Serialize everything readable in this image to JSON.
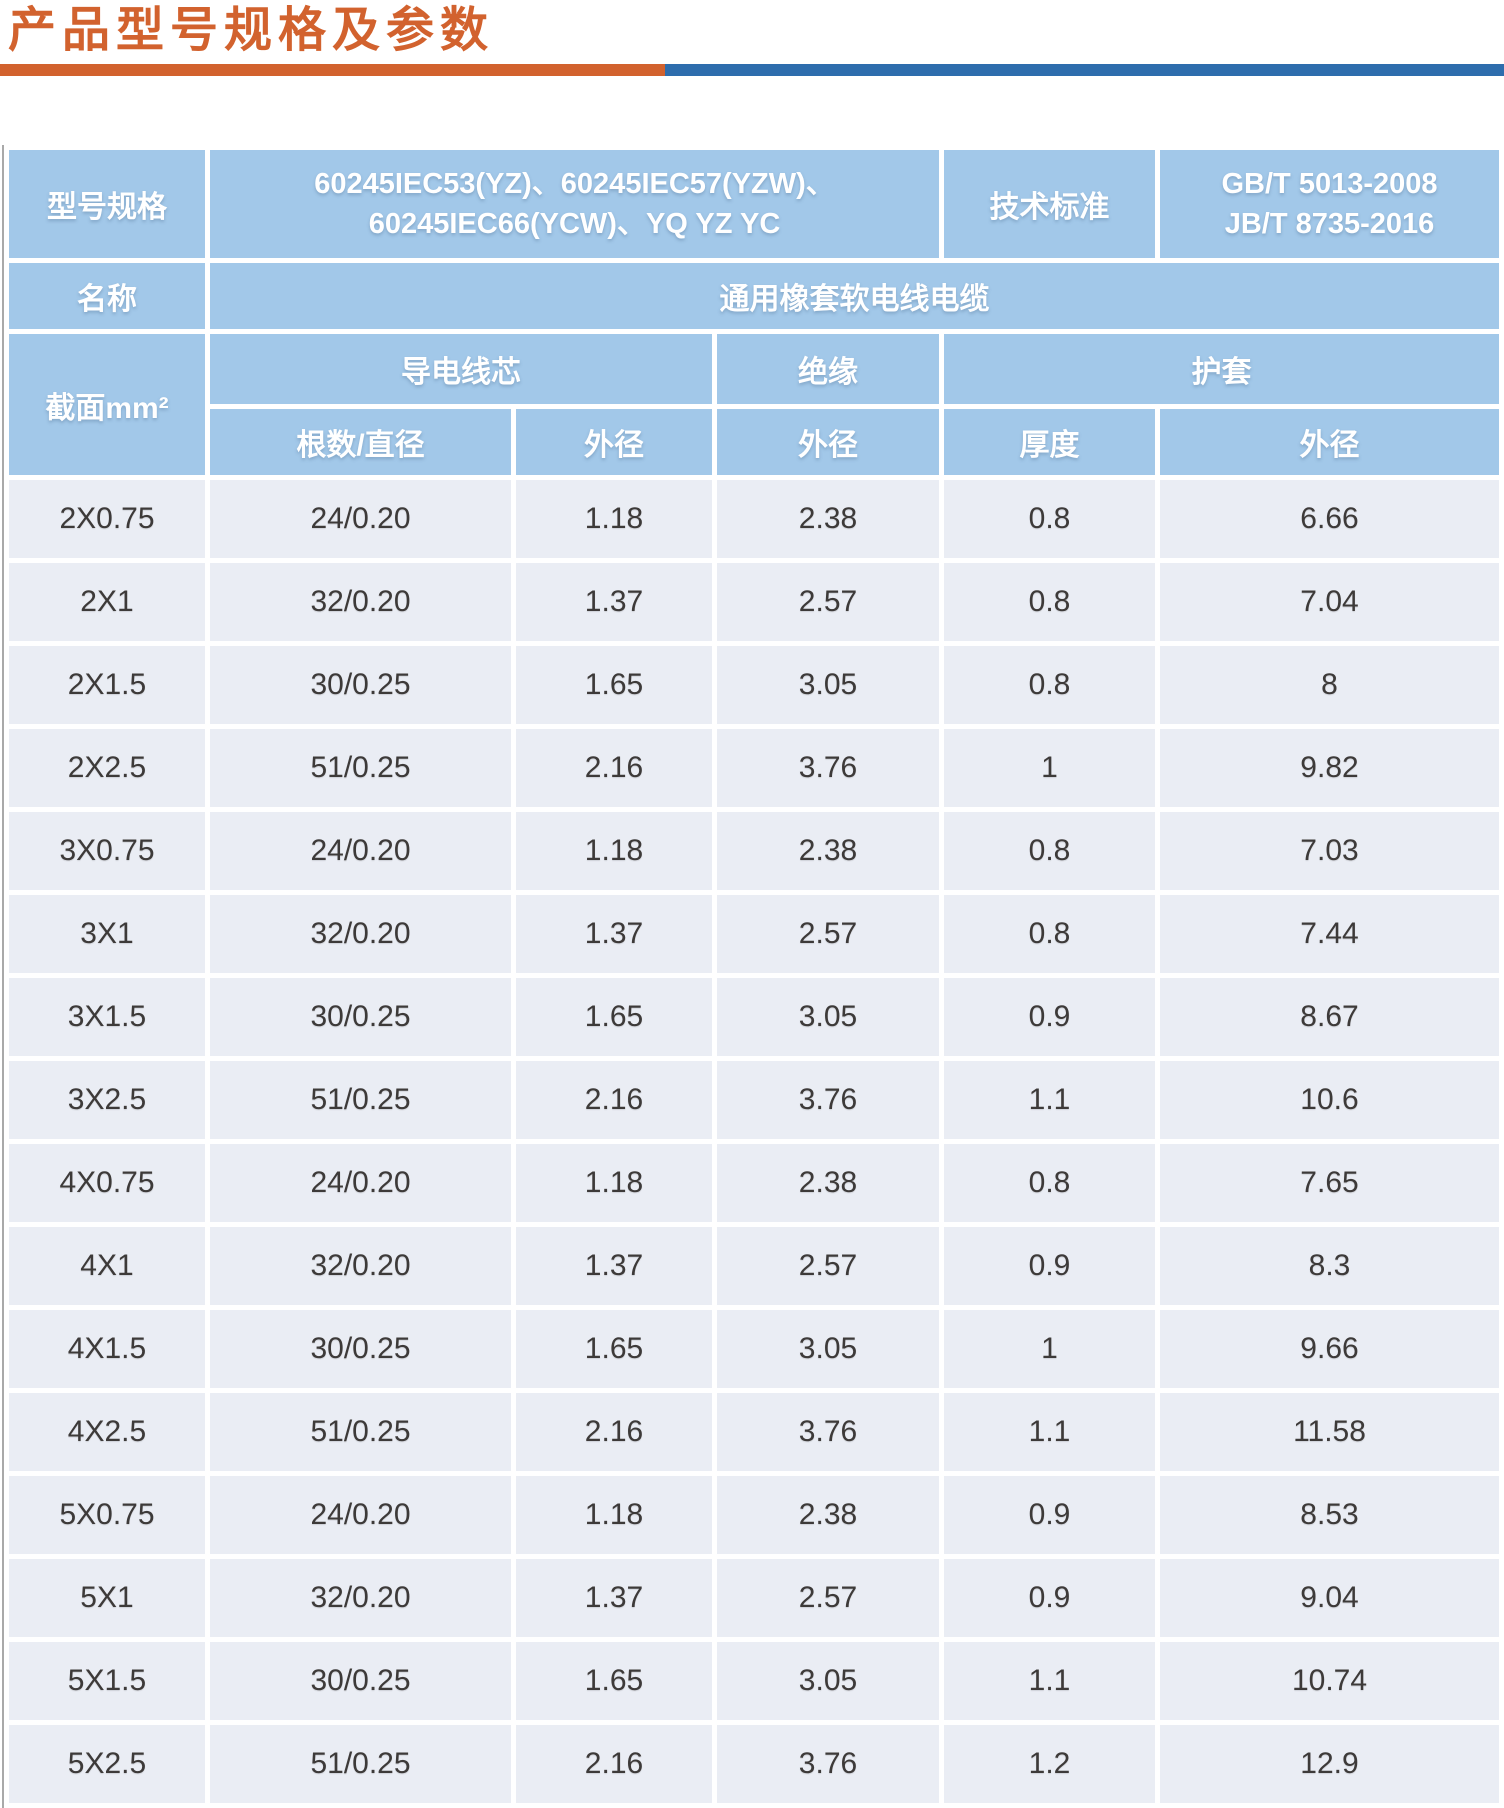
{
  "page": {
    "title": "产品型号规格及参数",
    "accent_orange": "#d2622e",
    "accent_blue": "#2e6dad"
  },
  "table": {
    "header": {
      "model_label": "型号规格",
      "model_value_line1": "60245IEC53(YZ)、60245IEC57(YZW)、",
      "model_value_line2": "60245IEC66(YCW)、YQ YZ YC",
      "standard_label": "技术标准",
      "standard_value_line1": "GB/T 5013-2008",
      "standard_value_line2": "JB/T 8735-2016",
      "name_label": "名称",
      "name_value": "通用橡套软电线电缆",
      "section_label": "截面mm²",
      "conductor_group": "导电线芯",
      "insulation_group": "绝缘",
      "sheath_group": "护套",
      "col_strands": "根数/直径",
      "col_conductor_od": "外径",
      "col_insulation_od": "外径",
      "col_thickness": "厚度",
      "col_sheath_od": "外径"
    },
    "rows": [
      [
        "2X0.75",
        "24/0.20",
        "1.18",
        "2.38",
        "0.8",
        "6.66"
      ],
      [
        "2X1",
        "32/0.20",
        "1.37",
        "2.57",
        "0.8",
        "7.04"
      ],
      [
        "2X1.5",
        "30/0.25",
        "1.65",
        "3.05",
        "0.8",
        "8"
      ],
      [
        "2X2.5",
        "51/0.25",
        "2.16",
        "3.76",
        "1",
        "9.82"
      ],
      [
        "3X0.75",
        "24/0.20",
        "1.18",
        "2.38",
        "0.8",
        "7.03"
      ],
      [
        "3X1",
        "32/0.20",
        "1.37",
        "2.57",
        "0.8",
        "7.44"
      ],
      [
        "3X1.5",
        "30/0.25",
        "1.65",
        "3.05",
        "0.9",
        "8.67"
      ],
      [
        "3X2.5",
        "51/0.25",
        "2.16",
        "3.76",
        "1.1",
        "10.6"
      ],
      [
        "4X0.75",
        "24/0.20",
        "1.18",
        "2.38",
        "0.8",
        "7.65"
      ],
      [
        "4X1",
        "32/0.20",
        "1.37",
        "2.57",
        "0.9",
        "8.3"
      ],
      [
        "4X1.5",
        "30/0.25",
        "1.65",
        "3.05",
        "1",
        "9.66"
      ],
      [
        "4X2.5",
        "51/0.25",
        "2.16",
        "3.76",
        "1.1",
        "11.58"
      ],
      [
        "5X0.75",
        "24/0.20",
        "1.18",
        "2.38",
        "0.9",
        "8.53"
      ],
      [
        "5X1",
        "32/0.20",
        "1.37",
        "2.57",
        "0.9",
        "9.04"
      ],
      [
        "5X1.5",
        "30/0.25",
        "1.65",
        "3.05",
        "1.1",
        "10.74"
      ],
      [
        "5X2.5",
        "51/0.25",
        "2.16",
        "3.76",
        "1.2",
        "12.9"
      ]
    ]
  }
}
